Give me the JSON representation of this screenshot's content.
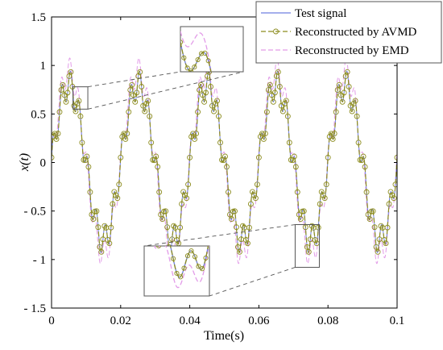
{
  "chart_data": {
    "type": "line",
    "xlabel": "Time(s)",
    "ylabel": "x(t)",
    "xlim": [
      0,
      0.1
    ],
    "ylim": [
      -1.5,
      1.5
    ],
    "x_ticks": [
      0,
      0.02,
      0.04,
      0.06,
      0.08,
      0.1
    ],
    "y_ticks": [
      -1.5,
      -1,
      -0.5,
      0,
      0.5,
      1,
      1.5
    ],
    "x_tick_labels": [
      "0",
      "0.02",
      "0.04",
      "0.06",
      "0.08",
      "0.1"
    ],
    "y_tick_labels": [
      "- 1.5",
      "- 1",
      "- 0.5",
      "0",
      "0.5",
      "1",
      "1.5"
    ],
    "legend_position": "top-right",
    "grid": false,
    "series": [
      {
        "name": "Test signal",
        "color": "#6f7fe0",
        "style": "solid",
        "signal": {
          "a1": 0.8,
          "f1": 50,
          "a2": 0.15,
          "f2": 400,
          "phase2": 0.35
        },
        "approx_peak": 0.95
      },
      {
        "name": "Reconstructed by AVMD",
        "color": "#8c8c1f",
        "style": "dashed",
        "marker": "circle",
        "signal": {
          "a1": 0.8,
          "f1": 50,
          "a2": 0.15,
          "f2": 400,
          "phase2": 0.35
        },
        "approx_peak": 0.95
      },
      {
        "name": "Reconstructed by EMD",
        "color": "#e29be8",
        "style": "dashed",
        "signal": {
          "a1": 0.94,
          "f1": 50,
          "a2": 0.14,
          "f2": 400,
          "phase2": 0.85
        },
        "approx_peak": 1.1
      }
    ],
    "zoom_insets": [
      {
        "source_x_range": [
          0.0062,
          0.0105
        ],
        "source_y_range": [
          0.55,
          0.78
        ],
        "location": "top-center"
      },
      {
        "source_x_range": [
          0.0705,
          0.0775
        ],
        "source_y_range": [
          -1.08,
          -0.64
        ],
        "location": "bottom-center"
      }
    ]
  }
}
